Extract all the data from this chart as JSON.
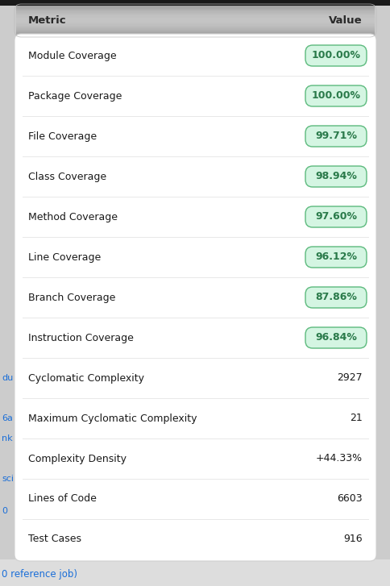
{
  "header": [
    "Metric",
    "Value"
  ],
  "rows": [
    {
      "metric": "Module Coverage",
      "value": "100.00%",
      "badge": true
    },
    {
      "metric": "Package Coverage",
      "value": "100.00%",
      "badge": true
    },
    {
      "metric": "File Coverage",
      "value": "99.71%",
      "badge": true
    },
    {
      "metric": "Class Coverage",
      "value": "98.94%",
      "badge": true
    },
    {
      "metric": "Method Coverage",
      "value": "97.60%",
      "badge": true
    },
    {
      "metric": "Line Coverage",
      "value": "96.12%",
      "badge": true
    },
    {
      "metric": "Branch Coverage",
      "value": "87.86%",
      "badge": true
    },
    {
      "metric": "Instruction Coverage",
      "value": "96.84%",
      "badge": true
    },
    {
      "metric": "Cyclomatic Complexity",
      "value": "2927",
      "badge": false
    },
    {
      "metric": "Maximum Cyclomatic Complexity",
      "value": "21",
      "badge": false
    },
    {
      "metric": "Complexity Density",
      "value": "+44.33%",
      "badge": false
    },
    {
      "metric": "Lines of Code",
      "value": "6603",
      "badge": false
    },
    {
      "metric": "Test Cases",
      "value": "916",
      "badge": false
    }
  ],
  "header_bg": "#545454",
  "header_text_color": "#2a2a2a",
  "row_bg": "#ffffff",
  "divider_color": "#e8e8e8",
  "metric_text_color": "#1a1a1a",
  "value_text_color": "#1a1a1a",
  "badge_bg": "#d4f5e2",
  "badge_border": "#5cba7d",
  "badge_text_color": "#2a7a4a",
  "outer_bg": "#cccccc",
  "table_border_color": "#d0d0d0",
  "figsize": [
    4.85,
    7.27
  ],
  "dpi": 100
}
